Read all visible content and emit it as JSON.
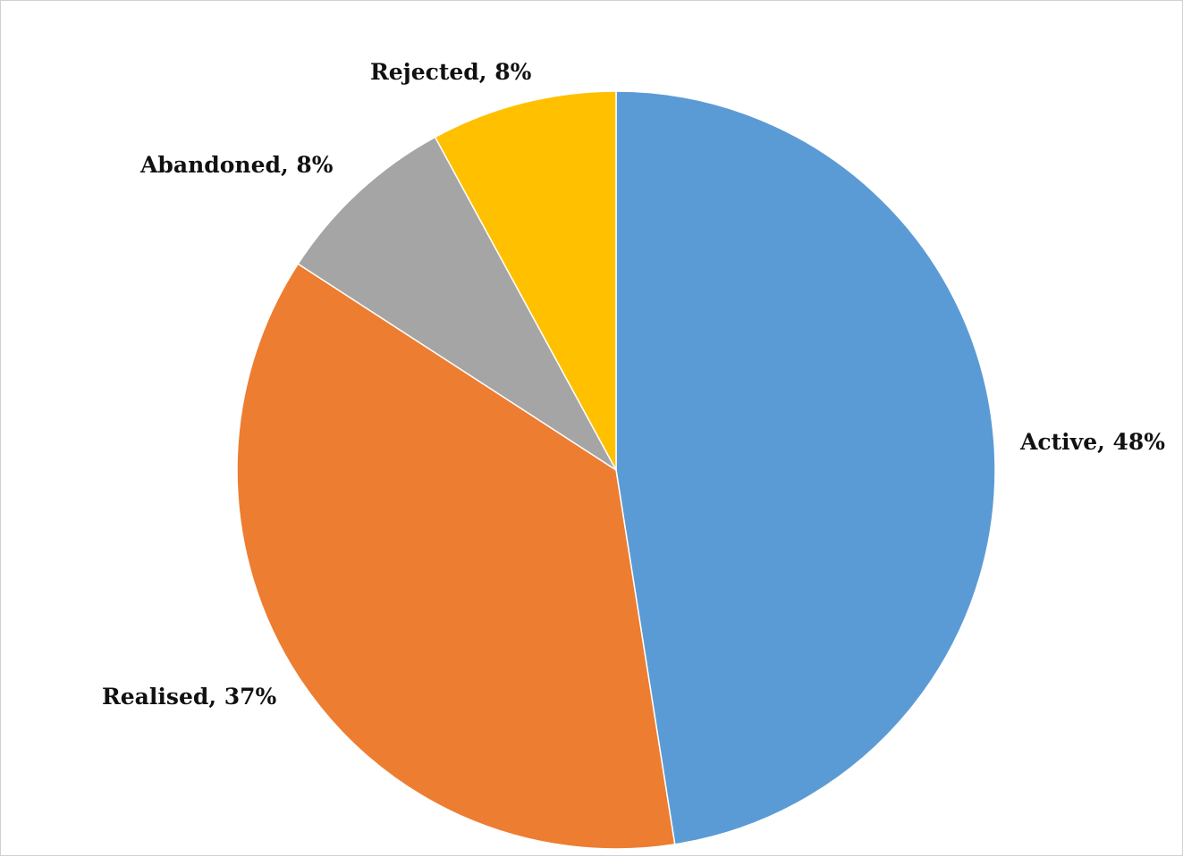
{
  "chart_data": {
    "type": "pie",
    "title": "",
    "start_angle_deg": 0,
    "direction": "clockwise",
    "slices": [
      {
        "label": "Active",
        "value": 48,
        "data_label": "Active, 48%",
        "color": "#5B9BD5"
      },
      {
        "label": "Realised",
        "value": 37,
        "data_label": "Realised, 37%",
        "color": "#ED7D31"
      },
      {
        "label": "Abandoned",
        "value": 8,
        "data_label": "Abandoned, 8%",
        "color": "#A5A5A5"
      },
      {
        "label": "Rejected",
        "value": 8,
        "data_label": "Rejected, 8%",
        "color": "#FFC000"
      }
    ],
    "legend": "none",
    "slice_border_color": "#FFFFFF"
  }
}
